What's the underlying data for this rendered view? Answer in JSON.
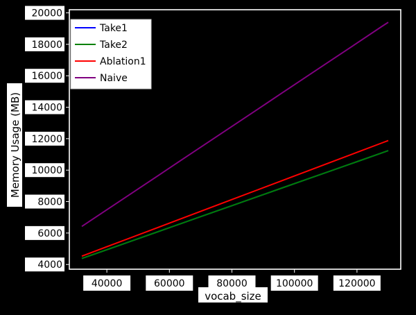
{
  "chart_data": {
    "type": "line",
    "title": "",
    "xlabel": "vocab_size",
    "ylabel": "Memory Usage (MB)",
    "xlim": [
      28000,
      134000
    ],
    "ylim": [
      3700,
      20200
    ],
    "xticks": [
      40000,
      60000,
      80000,
      100000,
      120000
    ],
    "yticks": [
      4000,
      6000,
      8000,
      10000,
      12000,
      14000,
      16000,
      18000,
      20000
    ],
    "grid": false,
    "legend_position": "upper-left",
    "x": [
      32000,
      40000,
      48000,
      56000,
      64000,
      72000,
      80000,
      88000,
      96000,
      104000,
      112000,
      120000,
      128000,
      130000
    ],
    "series": [
      {
        "name": "Take1",
        "color": "#0000ff",
        "values": [
          4380,
          4940,
          5500,
          6060,
          6620,
          7180,
          7740,
          8300,
          8860,
          9420,
          9980,
          10540,
          11100,
          11240
        ]
      },
      {
        "name": "Take2",
        "color": "#008000",
        "values": [
          4380,
          4940,
          5500,
          6060,
          6620,
          7180,
          7740,
          8300,
          8860,
          9420,
          9980,
          10540,
          11100,
          11240
        ]
      },
      {
        "name": "Ablation1",
        "color": "#ff0000",
        "values": [
          4530,
          5130,
          5730,
          6330,
          6930,
          7530,
          8130,
          8730,
          9330,
          9930,
          10530,
          11130,
          11730,
          11880
        ]
      },
      {
        "name": "Naive",
        "color": "#800080",
        "values": [
          6420,
          7480,
          8540,
          9600,
          10660,
          11720,
          12780,
          13840,
          14900,
          15960,
          17020,
          18080,
          19140,
          19400
        ]
      }
    ]
  }
}
